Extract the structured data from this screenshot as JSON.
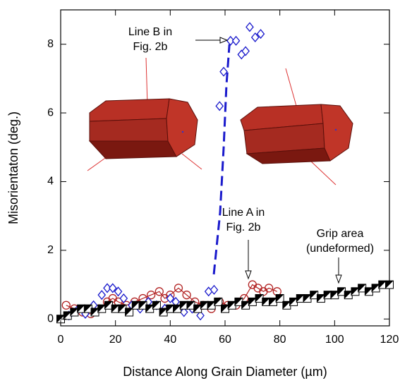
{
  "chart_data": {
    "type": "scatter",
    "x_label": "Distance Along Grain Diameter (µm)",
    "y_label": "Misorientaton (deg.)",
    "xlim": [
      0,
      120
    ],
    "ylim": [
      -0.2,
      9
    ],
    "xticks": [
      0,
      20,
      40,
      60,
      80,
      100,
      120
    ],
    "yticks": [
      0,
      2,
      4,
      6,
      8
    ],
    "series": [
      {
        "color": "#b22222",
        "marker": "circle",
        "connect": true,
        "x": [
          2,
          5,
          8,
          11,
          14,
          17,
          19,
          21,
          24,
          27,
          30,
          33,
          36,
          38,
          40,
          43,
          46,
          49,
          52,
          55,
          58,
          61,
          64,
          67,
          70,
          72,
          74,
          76,
          79
        ],
        "values": [
          0.4,
          0.3,
          0.2,
          0.15,
          0.3,
          0.5,
          0.6,
          0.5,
          0.4,
          0.5,
          0.6,
          0.7,
          0.8,
          0.6,
          0.7,
          0.9,
          0.7,
          0.5,
          0.4,
          0.3,
          0.5,
          0.4,
          0.4,
          0.6,
          1.0,
          0.9,
          0.8,
          0.9,
          0.8
        ]
      },
      {
        "color": "#1a1acc",
        "marker": "diamond",
        "connect": false,
        "x": [
          3,
          6,
          9,
          12,
          15,
          17,
          19,
          21,
          23,
          26,
          29,
          32,
          35,
          38,
          40,
          42,
          45,
          48,
          51,
          54,
          56,
          58,
          59.5,
          62,
          64,
          66,
          67.5,
          69,
          71,
          73
        ],
        "values": [
          0.1,
          0.25,
          0.15,
          0.4,
          0.7,
          0.9,
          0.9,
          0.8,
          0.6,
          0.4,
          0.3,
          0.5,
          0.4,
          0.3,
          0.6,
          0.5,
          0.2,
          0.3,
          0.1,
          0.8,
          0.85,
          6.2,
          7.2,
          8.1,
          8.1,
          7.7,
          7.8,
          8.5,
          8.2,
          8.3
        ]
      },
      {
        "color": "#1a1acc",
        "marker": "none",
        "connect": true,
        "dashed": true,
        "x": [
          55.9,
          58.2,
          59.5,
          60.5,
          61.6
        ],
        "values": [
          1.3,
          3.1,
          5.0,
          6.8,
          8.0
        ]
      },
      {
        "color": "#000000",
        "marker": "half-square",
        "connect": false,
        "x": [
          0,
          2.5,
          5,
          7.5,
          10,
          12.5,
          15,
          17.5,
          20,
          22.5,
          25,
          27.5,
          30,
          32.5,
          35,
          37.5,
          40,
          42.5,
          45,
          47.5,
          50,
          52.5,
          55,
          57.5,
          60,
          62.5,
          65,
          67.5,
          70,
          72.5,
          75,
          77.5,
          80,
          82.5,
          85,
          87.5,
          90,
          92.5,
          95,
          97.5,
          100,
          102.5,
          105,
          107.5,
          110,
          112.5,
          115,
          117.5,
          120
        ],
        "values": [
          0,
          0.1,
          0.2,
          0.3,
          0.3,
          0.2,
          0.3,
          0.4,
          0.3,
          0.3,
          0.2,
          0.4,
          0.4,
          0.3,
          0.4,
          0.2,
          0.3,
          0.3,
          0.4,
          0.4,
          0.3,
          0.4,
          0.4,
          0.5,
          0.3,
          0.4,
          0.5,
          0.4,
          0.5,
          0.6,
          0.5,
          0.5,
          0.6,
          0.4,
          0.5,
          0.6,
          0.6,
          0.7,
          0.6,
          0.7,
          0.7,
          0.8,
          0.7,
          0.8,
          0.9,
          0.8,
          0.9,
          1.0,
          1.0
        ]
      }
    ],
    "annotations": [
      {
        "lines": [
          "Line B in",
          "Fig. 2b"
        ]
      },
      {
        "lines": [
          "Line A in",
          "Fig. 2b"
        ]
      },
      {
        "lines": [
          "Grip area",
          "(undeformed)"
        ]
      }
    ]
  }
}
